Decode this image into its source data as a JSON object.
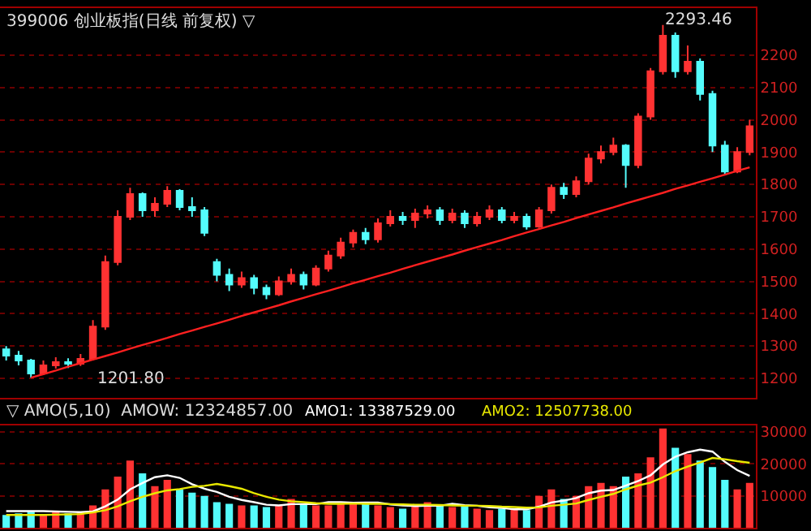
{
  "chart_data": [
    {
      "type": "candlestick",
      "title": "399006 创业板指(日线 前复权) ▽",
      "categories": [
        null,
        null,
        null,
        null,
        null,
        null,
        null,
        null,
        null,
        null,
        null,
        null,
        null,
        null,
        null,
        null,
        null,
        null,
        null,
        null,
        null,
        null,
        null,
        null,
        null,
        null,
        null,
        null,
        null,
        null,
        null,
        null,
        null,
        null,
        null,
        null,
        null,
        null,
        null,
        null,
        null,
        null,
        null,
        null,
        null,
        null,
        null,
        null,
        null,
        null,
        null,
        null,
        null,
        null,
        null,
        null,
        null,
        null,
        null,
        null,
        null
      ],
      "ohlc": [
        [
          1290,
          1300,
          1255,
          1270
        ],
        [
          1270,
          1285,
          1240,
          1255
        ],
        [
          1255,
          1260,
          1201.8,
          1215
        ],
        [
          1215,
          1255,
          1210,
          1240
        ],
        [
          1240,
          1265,
          1230,
          1250
        ],
        [
          1250,
          1262,
          1232,
          1245
        ],
        [
          1245,
          1275,
          1238,
          1260
        ],
        [
          1260,
          1380,
          1255,
          1360
        ],
        [
          1360,
          1580,
          1350,
          1560
        ],
        [
          1560,
          1720,
          1550,
          1700
        ],
        [
          1700,
          1790,
          1690,
          1770
        ],
        [
          1770,
          1775,
          1700,
          1720
        ],
        [
          1720,
          1760,
          1700,
          1740
        ],
        [
          1740,
          1795,
          1730,
          1780
        ],
        [
          1780,
          1785,
          1720,
          1730
        ],
        [
          1730,
          1760,
          1700,
          1720
        ],
        [
          1720,
          1730,
          1640,
          1650
        ],
        [
          1560,
          1570,
          1500,
          1520
        ],
        [
          1520,
          1540,
          1470,
          1490
        ],
        [
          1490,
          1530,
          1480,
          1510
        ],
        [
          1510,
          1520,
          1460,
          1480
        ],
        [
          1480,
          1490,
          1445,
          1460
        ],
        [
          1460,
          1515,
          1455,
          1500
        ],
        [
          1500,
          1540,
          1490,
          1520
        ],
        [
          1520,
          1530,
          1475,
          1490
        ],
        [
          1490,
          1550,
          1485,
          1540
        ],
        [
          1540,
          1595,
          1530,
          1580
        ],
        [
          1580,
          1635,
          1570,
          1620
        ],
        [
          1620,
          1660,
          1605,
          1650
        ],
        [
          1650,
          1665,
          1615,
          1630
        ],
        [
          1630,
          1695,
          1620,
          1680
        ],
        [
          1680,
          1720,
          1670,
          1700
        ],
        [
          1700,
          1715,
          1675,
          1690
        ],
        [
          1690,
          1725,
          1665,
          1710
        ],
        [
          1710,
          1735,
          1695,
          1720
        ],
        [
          1720,
          1730,
          1675,
          1690
        ],
        [
          1690,
          1725,
          1680,
          1710
        ],
        [
          1710,
          1720,
          1665,
          1680
        ],
        [
          1680,
          1715,
          1670,
          1700
        ],
        [
          1700,
          1735,
          1690,
          1720
        ],
        [
          1720,
          1730,
          1680,
          1690
        ],
        [
          1690,
          1715,
          1680,
          1700
        ],
        [
          1700,
          1710,
          1660,
          1670
        ],
        [
          1670,
          1730,
          1665,
          1720
        ],
        [
          1720,
          1800,
          1710,
          1790
        ],
        [
          1790,
          1805,
          1755,
          1770
        ],
        [
          1770,
          1825,
          1760,
          1810
        ],
        [
          1810,
          1895,
          1800,
          1880
        ],
        [
          1880,
          1920,
          1865,
          1900
        ],
        [
          1900,
          1945,
          1890,
          1920
        ],
        [
          1920,
          1925,
          1790,
          1860
        ],
        [
          1860,
          2020,
          1850,
          2010
        ],
        [
          2010,
          2160,
          2000,
          2150
        ],
        [
          2150,
          2293.46,
          2140,
          2260
        ],
        [
          2260,
          2270,
          2130,
          2150
        ],
        [
          2150,
          2230,
          2140,
          2180
        ],
        [
          2180,
          2190,
          2060,
          2080
        ],
        [
          2080,
          2090,
          1900,
          1920
        ],
        [
          1920,
          1935,
          1832,
          1840
        ],
        [
          1840,
          1915,
          1835,
          1900
        ],
        [
          1900,
          2000,
          1890,
          1980
        ]
      ],
      "colors": [
        "#54fcfc",
        "#54fcfc",
        "#54fcfc",
        "#ff3232",
        "#ff3232",
        "#54fcfc",
        "#ff3232",
        "#ff3232",
        "#ff3232",
        "#ff3232",
        "#ff3232",
        "#54fcfc",
        "#ff3232",
        "#ff3232",
        "#54fcfc",
        "#54fcfc",
        "#54fcfc",
        "#54fcfc",
        "#54fcfc",
        "#ff3232",
        "#54fcfc",
        "#54fcfc",
        "#ff3232",
        "#ff3232",
        "#54fcfc",
        "#ff3232",
        "#ff3232",
        "#ff3232",
        "#ff3232",
        "#54fcfc",
        "#ff3232",
        "#ff3232",
        "#54fcfc",
        "#ff3232",
        "#ff3232",
        "#54fcfc",
        "#ff3232",
        "#54fcfc",
        "#ff3232",
        "#ff3232",
        "#54fcfc",
        "#ff3232",
        "#54fcfc",
        "#ff3232",
        "#ff3232",
        "#54fcfc",
        "#ff3232",
        "#ff3232",
        "#ff3232",
        "#ff3232",
        "#54fcfc",
        "#ff3232",
        "#ff3232",
        "#ff3232",
        "#54fcfc",
        "#ff3232",
        "#54fcfc",
        "#54fcfc",
        "#54fcfc",
        "#ff3232",
        "#ff3232"
      ],
      "series": [
        {
          "type": "line",
          "color": "#ff2020",
          "values": [
            null,
            null,
            1202,
            1213,
            1224,
            1236,
            1247,
            1258,
            1269,
            1280,
            1292,
            1303,
            1314,
            1325,
            1337,
            1348,
            1359,
            1370,
            1381,
            1393,
            1404,
            1415,
            1426,
            1438,
            1449,
            1460,
            1471,
            1482,
            1494,
            1505,
            1516,
            1527,
            1539,
            1550,
            1561,
            1572,
            1583,
            1595,
            1606,
            1617,
            1628,
            1640,
            1651,
            1662,
            1673,
            1684,
            1696,
            1707,
            1718,
            1729,
            1741,
            1752,
            1763,
            1774,
            1786,
            1797,
            1808,
            1819,
            1830,
            1842,
            1853
          ]
        }
      ],
      "annotations": [
        "2293.46",
        "1201.80"
      ],
      "ylim": [
        1140,
        2346
      ],
      "yticks": [
        1200,
        1300,
        1400,
        1500,
        1600,
        1700,
        1800,
        1900,
        2000,
        2100,
        2200
      ],
      "grid": "y",
      "legend": false,
      "tick_labels": "y"
    },
    {
      "type": "bar",
      "title": "▽ AMO(5,10)  AMOW: 12324857.00",
      "categories": [
        null,
        null,
        null,
        null,
        null,
        null,
        null,
        null,
        null,
        null,
        null,
        null,
        null,
        null,
        null,
        null,
        null,
        null,
        null,
        null,
        null,
        null,
        null,
        null,
        null,
        null,
        null,
        null,
        null,
        null,
        null,
        null,
        null,
        null,
        null,
        null,
        null,
        null,
        null,
        null,
        null,
        null,
        null,
        null,
        null,
        null,
        null,
        null,
        null,
        null,
        null,
        null,
        null,
        null,
        null,
        null,
        null,
        null,
        null,
        null,
        null
      ],
      "series": [
        {
          "colors": [
            "#54fcfc",
            "#54fcfc",
            "#54fcfc",
            "#ff3232",
            "#ff3232",
            "#54fcfc",
            "#ff3232",
            "#ff3232",
            "#ff3232",
            "#ff3232",
            "#ff3232",
            "#54fcfc",
            "#ff3232",
            "#ff3232",
            "#54fcfc",
            "#54fcfc",
            "#54fcfc",
            "#54fcfc",
            "#54fcfc",
            "#ff3232",
            "#54fcfc",
            "#54fcfc",
            "#ff3232",
            "#ff3232",
            "#54fcfc",
            "#ff3232",
            "#ff3232",
            "#ff3232",
            "#ff3232",
            "#54fcfc",
            "#ff3232",
            "#ff3232",
            "#54fcfc",
            "#ff3232",
            "#ff3232",
            "#54fcfc",
            "#ff3232",
            "#54fcfc",
            "#ff3232",
            "#ff3232",
            "#54fcfc",
            "#ff3232",
            "#54fcfc",
            "#ff3232",
            "#ff3232",
            "#54fcfc",
            "#ff3232",
            "#ff3232",
            "#ff3232",
            "#ff3232",
            "#54fcfc",
            "#ff3232",
            "#ff3232",
            "#ff3232",
            "#54fcfc",
            "#ff3232",
            "#54fcfc",
            "#54fcfc",
            "#54fcfc",
            "#ff3232",
            "#ff3232"
          ],
          "values": [
            4000,
            4500,
            5000,
            4000,
            5000,
            4500,
            5000,
            7000,
            12000,
            16000,
            21000,
            17000,
            13000,
            15000,
            12000,
            11000,
            10000,
            8000,
            7500,
            7000,
            7000,
            6500,
            7000,
            9000,
            7500,
            7000,
            7000,
            7500,
            8000,
            7500,
            7000,
            6500,
            6000,
            7000,
            8000,
            7000,
            6500,
            7000,
            6000,
            5500,
            6000,
            6000,
            5500,
            10000,
            12000,
            9000,
            10000,
            13000,
            14000,
            13000,
            16000,
            17000,
            22000,
            31000,
            25000,
            23000,
            21000,
            19000,
            15000,
            12000,
            14000
          ]
        },
        {
          "type": "line",
          "name": "AMO1: 13387529.00",
          "color": "#ffffff",
          "values": [
            5200,
            5200,
            5200,
            5200,
            5100,
            5000,
            4900,
            5100,
            6700,
            8800,
            12000,
            14000,
            15800,
            16400,
            15600,
            13600,
            12200,
            11200,
            9700,
            8700,
            8000,
            7200,
            7000,
            7400,
            7400,
            7400,
            8000,
            8000,
            7800,
            7900,
            7900,
            7300,
            7000,
            6800,
            6900,
            6900,
            7500,
            7100,
            6900,
            6400,
            6200,
            5800,
            5800,
            6600,
            7900,
            8500,
            9300,
            10800,
            11600,
            11800,
            13200,
            14600,
            16400,
            19800,
            22200,
            23600,
            24400,
            23800,
            20600,
            18000,
            16200
          ]
        },
        {
          "type": "line",
          "name": "AMO2: 12507738.00",
          "color": "#e8e800",
          "values": [
            4000,
            4000,
            4000,
            4000,
            4100,
            4200,
            4300,
            4800,
            5500,
            6700,
            8300,
            9700,
            10800,
            11700,
            12100,
            12800,
            13100,
            13700,
            13000,
            12200,
            10800,
            9700,
            8800,
            8300,
            8000,
            7700,
            7500,
            7500,
            7600,
            7500,
            7500,
            7400,
            7300,
            7200,
            7200,
            7100,
            7000,
            6900,
            6900,
            6800,
            6600,
            6500,
            6300,
            6400,
            6900,
            7200,
            7600,
            8700,
            9700,
            10600,
            12000,
            13200,
            14100,
            15800,
            17700,
            19100,
            20400,
            21800,
            21400,
            20800,
            20300
          ]
        }
      ],
      "ylim": [
        0,
        32000
      ],
      "yticks": [
        10000,
        20000,
        30000
      ],
      "grid": "y",
      "legend": "top",
      "tick_labels": "y"
    }
  ]
}
